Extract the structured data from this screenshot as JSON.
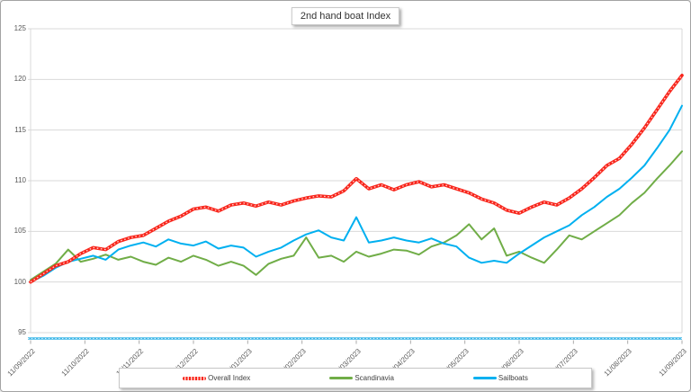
{
  "title": "2nd hand boat Index",
  "colors": {
    "overall_index": "#f8251b",
    "overall_index_overlay": "#ffd2cd",
    "scandinavia": "#70ad47",
    "sailboats": "#00b0f0",
    "axis_line_blue": "#3db7e8",
    "axis_line_overlay": "#d8f1fb",
    "gridline": "#d9d9d9",
    "tick_text": "#595959"
  },
  "chart_data": {
    "type": "line",
    "title": "2nd hand boat Index",
    "xlabel": "",
    "ylabel": "",
    "ylim": [
      95,
      125
    ],
    "y_ticks": [
      "95",
      "100",
      "105",
      "110",
      "115",
      "120",
      "125"
    ],
    "grid": "horizontal",
    "legend_position": "bottom",
    "x_tick_labels": [
      "11/09/2022",
      "11/10/2022",
      "11/11/2022",
      "11/12/2022",
      "11/01/2023",
      "11/02/2023",
      "11/03/2023",
      "11/04/2023",
      "11/05/2023",
      "11/06/2023",
      "11/07/2023",
      "11/08/2023",
      "11/09/2023"
    ],
    "x_note": "weekly observations from 11/09/2022 to 11/09/2023",
    "series": [
      {
        "name": "Overall Index",
        "color": "#f8251b",
        "style": "thick-dotted",
        "values": [
          100.0,
          100.8,
          101.6,
          102.0,
          102.8,
          103.4,
          103.2,
          104.0,
          104.4,
          104.6,
          105.3,
          106.0,
          106.5,
          107.2,
          107.4,
          107.0,
          107.6,
          107.8,
          107.5,
          107.9,
          107.6,
          108.0,
          108.3,
          108.5,
          108.4,
          109.0,
          110.2,
          109.2,
          109.6,
          109.1,
          109.6,
          109.9,
          109.4,
          109.6,
          109.2,
          108.8,
          108.2,
          107.8,
          107.1,
          106.8,
          107.4,
          107.9,
          107.6,
          108.3,
          109.2,
          110.3,
          111.5,
          112.2,
          113.6,
          115.2,
          117.0,
          118.8,
          120.4
        ]
      },
      {
        "name": "Scandinavia",
        "color": "#70ad47",
        "style": "solid",
        "values": [
          100.2,
          101.0,
          101.8,
          103.2,
          102.0,
          102.3,
          102.7,
          102.2,
          102.5,
          102.0,
          101.7,
          102.4,
          102.0,
          102.6,
          102.2,
          101.6,
          102.0,
          101.6,
          100.7,
          101.8,
          102.3,
          102.6,
          104.4,
          102.4,
          102.6,
          102.0,
          103.0,
          102.5,
          102.8,
          103.2,
          103.1,
          102.7,
          103.5,
          103.9,
          104.6,
          105.7,
          104.2,
          105.3,
          102.6,
          103.0,
          102.4,
          101.9,
          103.2,
          104.6,
          104.2,
          105.0,
          105.8,
          106.6,
          107.8,
          108.8,
          110.2,
          111.5,
          112.9
        ]
      },
      {
        "name": "Sailboats",
        "color": "#00b0f0",
        "style": "solid",
        "values": [
          100.0,
          100.6,
          101.4,
          102.0,
          102.3,
          102.6,
          102.2,
          103.2,
          103.6,
          103.9,
          103.5,
          104.2,
          103.8,
          103.6,
          104.0,
          103.3,
          103.6,
          103.4,
          102.5,
          103.0,
          103.4,
          104.1,
          104.7,
          105.1,
          104.4,
          104.1,
          106.4,
          103.9,
          104.1,
          104.4,
          104.1,
          103.9,
          104.3,
          103.8,
          103.5,
          102.4,
          101.9,
          102.1,
          101.9,
          102.8,
          103.6,
          104.4,
          105.0,
          105.6,
          106.6,
          107.4,
          108.4,
          109.2,
          110.3,
          111.5,
          113.2,
          115.0,
          117.4
        ]
      }
    ]
  },
  "legend": {
    "items": [
      "Overall Index",
      "Scandinavia",
      "Sailboats"
    ]
  }
}
